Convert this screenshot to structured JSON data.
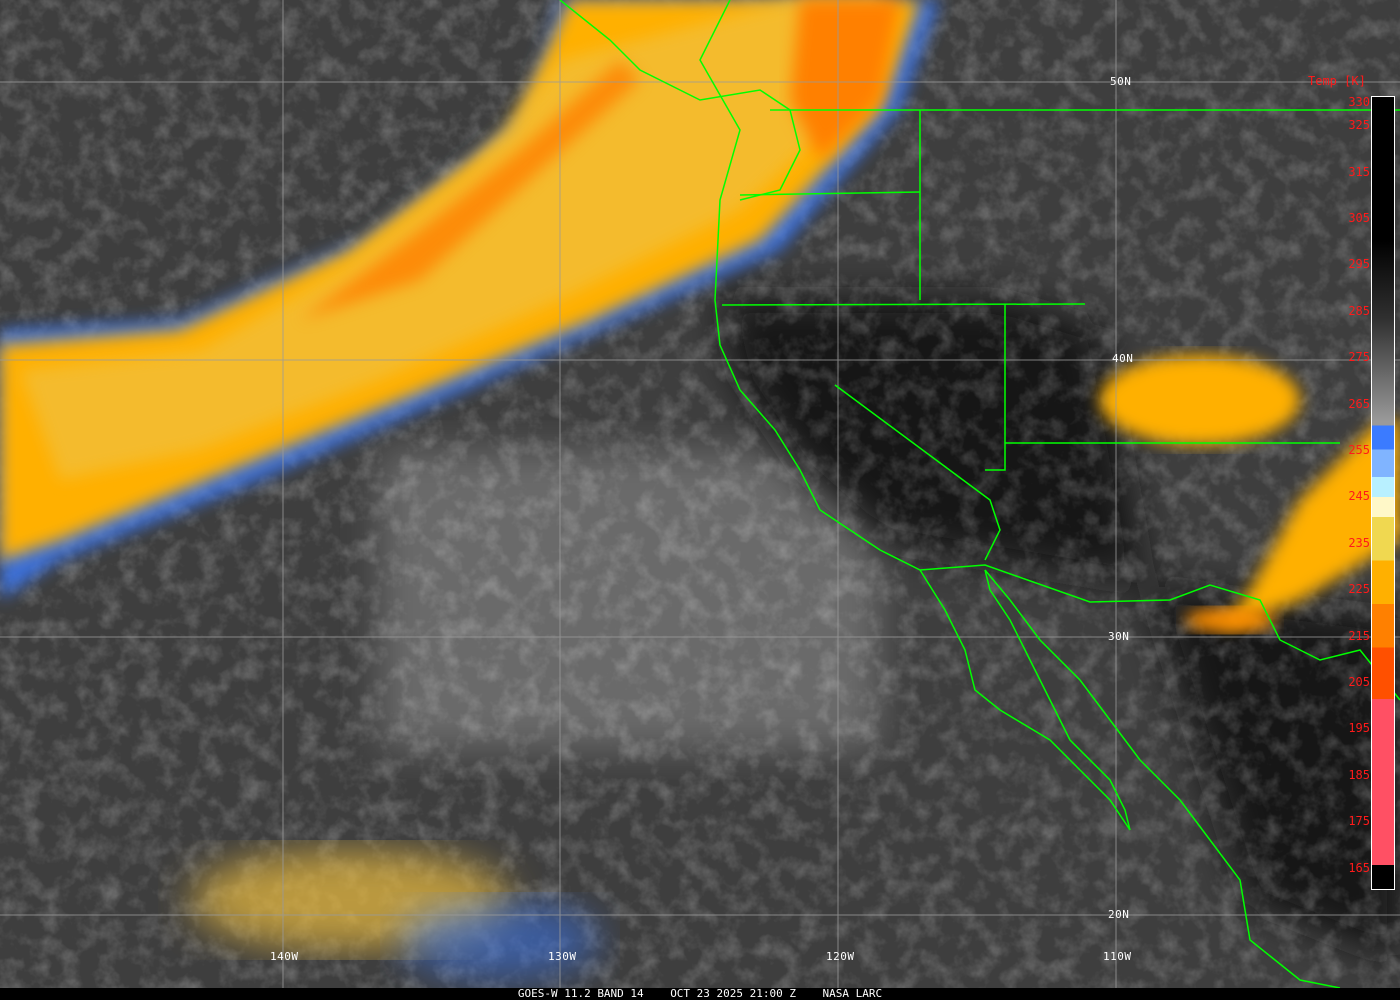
{
  "caption": {
    "satellite": "GOES-W 11.2 BAND 14",
    "datetime": "OCT 23 2025 21:00 Z",
    "source": "NASA LARC"
  },
  "latitude_labels": [
    "50N",
    "40N",
    "30N",
    "20N"
  ],
  "longitude_labels": [
    "140W",
    "130W",
    "120W",
    "110W"
  ],
  "colorbar": {
    "title": "Temp [K]",
    "ticks": [
      "330",
      "325",
      "315",
      "305",
      "295",
      "285",
      "275",
      "265",
      "255",
      "245",
      "235",
      "225",
      "215",
      "205",
      "195",
      "185",
      "175",
      "165"
    ],
    "colors": {
      "cold_black": "#000000",
      "gray": "#9a9a9a",
      "blue": "#3b7bff",
      "light_blue": "#80b4ff",
      "cyan": "#b8f0ff",
      "cream": "#fff8c8",
      "yellow": "#f0d850",
      "amber": "#ffb000",
      "orange": "#ff8000",
      "red_orange": "#ff5000",
      "pink": "#ff5064"
    }
  },
  "boundary_color": "#00ff00"
}
